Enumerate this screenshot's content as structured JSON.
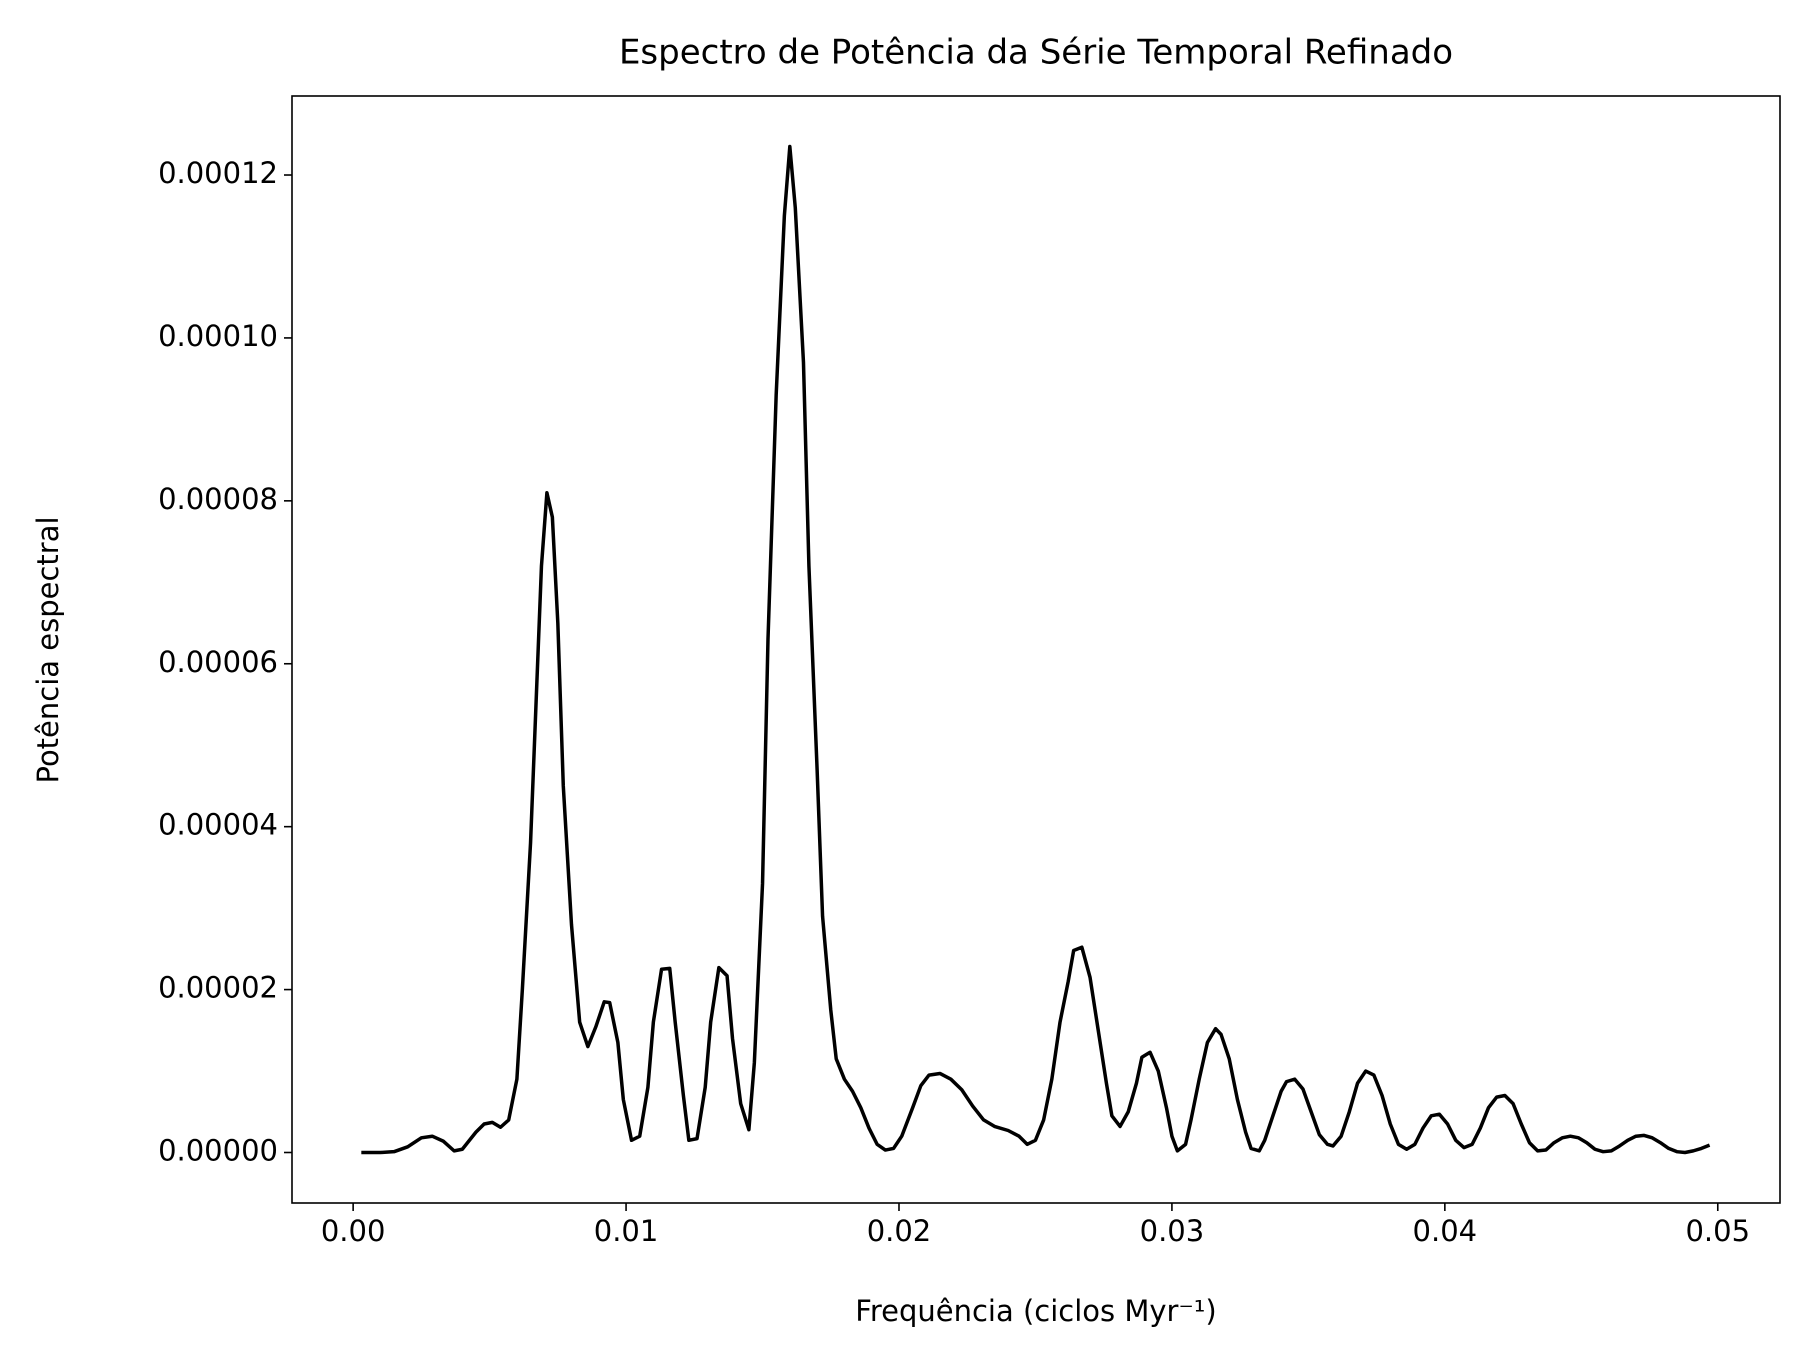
{
  "chart_data": {
    "type": "line",
    "title": "Espectro de Potência da Série Temporal Refinado",
    "xlabel": "Frequência (ciclos Myr⁻¹)",
    "ylabel": "Potência espectral",
    "x": [
      0.0003,
      0.001,
      0.0015,
      0.002,
      0.0025,
      0.0029,
      0.0033,
      0.0037,
      0.004,
      0.0045,
      0.0048,
      0.0051,
      0.0054,
      0.0057,
      0.006,
      0.0062,
      0.0065,
      0.0067,
      0.0069,
      0.0071,
      0.0073,
      0.0075,
      0.0077,
      0.008,
      0.0083,
      0.0086,
      0.0089,
      0.0092,
      0.0094,
      0.0097,
      0.0099,
      0.0102,
      0.0105,
      0.0108,
      0.011,
      0.0113,
      0.0116,
      0.0118,
      0.0121,
      0.0123,
      0.0126,
      0.0129,
      0.0131,
      0.0134,
      0.0137,
      0.0139,
      0.0142,
      0.0145,
      0.0147,
      0.015,
      0.0152,
      0.0155,
      0.0158,
      0.016,
      0.0162,
      0.0165,
      0.0167,
      0.017,
      0.0172,
      0.0175,
      0.0177,
      0.018,
      0.0183,
      0.0186,
      0.0189,
      0.0192,
      0.0195,
      0.0198,
      0.0201,
      0.0205,
      0.0208,
      0.0211,
      0.0215,
      0.0219,
      0.0223,
      0.0227,
      0.0231,
      0.0235,
      0.024,
      0.0244,
      0.0247,
      0.025,
      0.0253,
      0.0256,
      0.0259,
      0.0262,
      0.0264,
      0.0267,
      0.027,
      0.0273,
      0.0276,
      0.0278,
      0.0281,
      0.0284,
      0.0287,
      0.0289,
      0.0292,
      0.0295,
      0.0298,
      0.03,
      0.0302,
      0.0305,
      0.0307,
      0.031,
      0.0313,
      0.0316,
      0.0318,
      0.0321,
      0.0324,
      0.0327,
      0.0329,
      0.0332,
      0.0334,
      0.0337,
      0.034,
      0.0342,
      0.0345,
      0.0348,
      0.0351,
      0.0354,
      0.0357,
      0.0359,
      0.0362,
      0.0365,
      0.0368,
      0.0371,
      0.0374,
      0.0377,
      0.038,
      0.0383,
      0.0386,
      0.0389,
      0.0392,
      0.0395,
      0.0398,
      0.0401,
      0.0404,
      0.0407,
      0.041,
      0.0413,
      0.0416,
      0.0419,
      0.0422,
      0.0425,
      0.0428,
      0.0431,
      0.0434,
      0.0437,
      0.044,
      0.0443,
      0.0446,
      0.0449,
      0.0452,
      0.0455,
      0.0458,
      0.0461,
      0.0464,
      0.0467,
      0.047,
      0.0473,
      0.0476,
      0.0479,
      0.0482,
      0.0485,
      0.0488,
      0.0491,
      0.0494,
      0.0497
    ],
    "series": [
      {
        "color": "#000000",
        "values": [
          0,
          0,
          1e-07,
          7e-07,
          1.8e-06,
          2e-06,
          1.4e-06,
          2e-07,
          4e-07,
          2.5e-06,
          3.5e-06,
          3.7e-06,
          3.1e-06,
          4e-06,
          9e-06,
          2e-05,
          3.8e-05,
          5.5e-05,
          7.2e-05,
          8.1e-05,
          7.8e-05,
          6.5e-05,
          4.5e-05,
          2.8e-05,
          1.6e-05,
          1.3e-05,
          1.55e-05,
          1.85e-05,
          1.84e-05,
          1.35e-05,
          6.5e-06,
          1.5e-06,
          2e-06,
          8e-06,
          1.6e-05,
          2.25e-05,
          2.26e-05,
          1.6e-05,
          7e-06,
          1.5e-06,
          1.7e-06,
          8e-06,
          1.6e-05,
          2.27e-05,
          2.17e-05,
          1.4e-05,
          6e-06,
          2.8e-06,
          1.1e-05,
          3.3e-05,
          6.3e-05,
          9.3e-05,
          0.000115,
          0.0001235,
          0.000116,
          9.7e-05,
          7.2e-05,
          4.7e-05,
          2.9e-05,
          1.75e-05,
          1.15e-05,
          9e-06,
          7.5e-06,
          5.5e-06,
          3e-06,
          1e-06,
          3e-07,
          5e-07,
          2e-06,
          5.5e-06,
          8.2e-06,
          9.5e-06,
          9.7e-06,
          9e-06,
          7.7e-06,
          5.7e-06,
          4e-06,
          3.2e-06,
          2.7e-06,
          2e-06,
          1e-06,
          1.5e-06,
          4e-06,
          9e-06,
          1.6e-05,
          2.1e-05,
          2.48e-05,
          2.52e-05,
          2.15e-05,
          1.5e-05,
          8.5e-06,
          4.5e-06,
          3.2e-06,
          5e-06,
          8.5e-06,
          1.17e-05,
          1.23e-05,
          1e-05,
          5.5e-06,
          2e-06,
          2e-07,
          1e-06,
          4e-06,
          9e-06,
          1.35e-05,
          1.52e-05,
          1.45e-05,
          1.15e-05,
          6.5e-06,
          2.5e-06,
          5e-07,
          2e-07,
          1.5e-06,
          4.5e-06,
          7.5e-06,
          8.7e-06,
          9e-06,
          7.8e-06,
          5e-06,
          2.2e-06,
          1e-06,
          8e-07,
          2e-06,
          5e-06,
          8.5e-06,
          1e-05,
          9.5e-06,
          7e-06,
          3.5e-06,
          1e-06,
          4e-07,
          1e-06,
          3e-06,
          4.5e-06,
          4.7e-06,
          3.5e-06,
          1.5e-06,
          6e-07,
          1e-06,
          3e-06,
          5.5e-06,
          6.8e-06,
          7e-06,
          6e-06,
          3.5e-06,
          1.2e-06,
          2e-07,
          3e-07,
          1.2e-06,
          1.8e-06,
          2e-06,
          1.8e-06,
          1.2e-06,
          4e-07,
          1e-07,
          2e-07,
          8e-07,
          1.5e-06,
          2e-06,
          2.1e-06,
          1.8e-06,
          1.2e-06,
          5e-07,
          1e-07,
          0,
          2e-07,
          5e-07,
          9e-07
        ]
      }
    ],
    "xlim": [
      -0.00224,
      0.05228
    ],
    "ylim": [
      -6.2e-06,
      0.0001297
    ],
    "xticks": [
      {
        "value": 0,
        "label": "0.00"
      },
      {
        "value": 0.01,
        "label": "0.01"
      },
      {
        "value": 0.02,
        "label": "0.02"
      },
      {
        "value": 0.03,
        "label": "0.03"
      },
      {
        "value": 0.04,
        "label": "0.04"
      },
      {
        "value": 0.05,
        "label": "0.05"
      }
    ],
    "yticks": [
      {
        "value": 0,
        "label": "0.00000"
      },
      {
        "value": 2e-05,
        "label": "0.00002"
      },
      {
        "value": 4e-05,
        "label": "0.00004"
      },
      {
        "value": 6e-05,
        "label": "0.00006"
      },
      {
        "value": 8e-05,
        "label": "0.00008"
      },
      {
        "value": 0.0001,
        "label": "0.00010"
      },
      {
        "value": 0.00012,
        "label": "0.00012"
      }
    ],
    "grid": false
  }
}
